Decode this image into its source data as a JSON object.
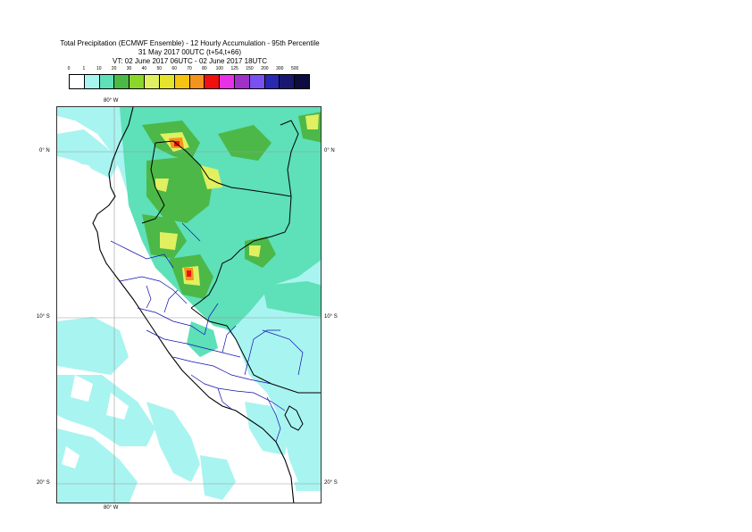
{
  "header": {
    "line1": "Total Precipitation (ECMWF Ensemble) - 12 Hourly Accumulation - 95th Percentile",
    "line2": "31 May 2017 00UTC (t+54,t+66)",
    "line3": "VT: 02 June 2017 06UTC - 02 June 2017 18UTC"
  },
  "legend": {
    "labels": [
      "0",
      "1",
      "10",
      "20",
      "30",
      "40",
      "50",
      "60",
      "70",
      "80",
      "100",
      "125",
      "150",
      "200",
      "300",
      "500"
    ],
    "colors": [
      "#ffffff",
      "#a8f4f0",
      "#5ee0b8",
      "#4cb848",
      "#8cd62c",
      "#e0f060",
      "#e4e42c",
      "#f4c410",
      "#f4941c",
      "#f01010",
      "#e830e8",
      "#a030c8",
      "#7a50f0",
      "#2828b0",
      "#181870",
      "#0c0c40"
    ]
  },
  "map": {
    "lon_labels": {
      "top": "80° W",
      "bottom": "80° W"
    },
    "lat_labels": {
      "left": [
        "0° N",
        "10° S",
        "20° S"
      ],
      "right": [
        "0° N",
        "10° S",
        "20° S"
      ]
    }
  }
}
